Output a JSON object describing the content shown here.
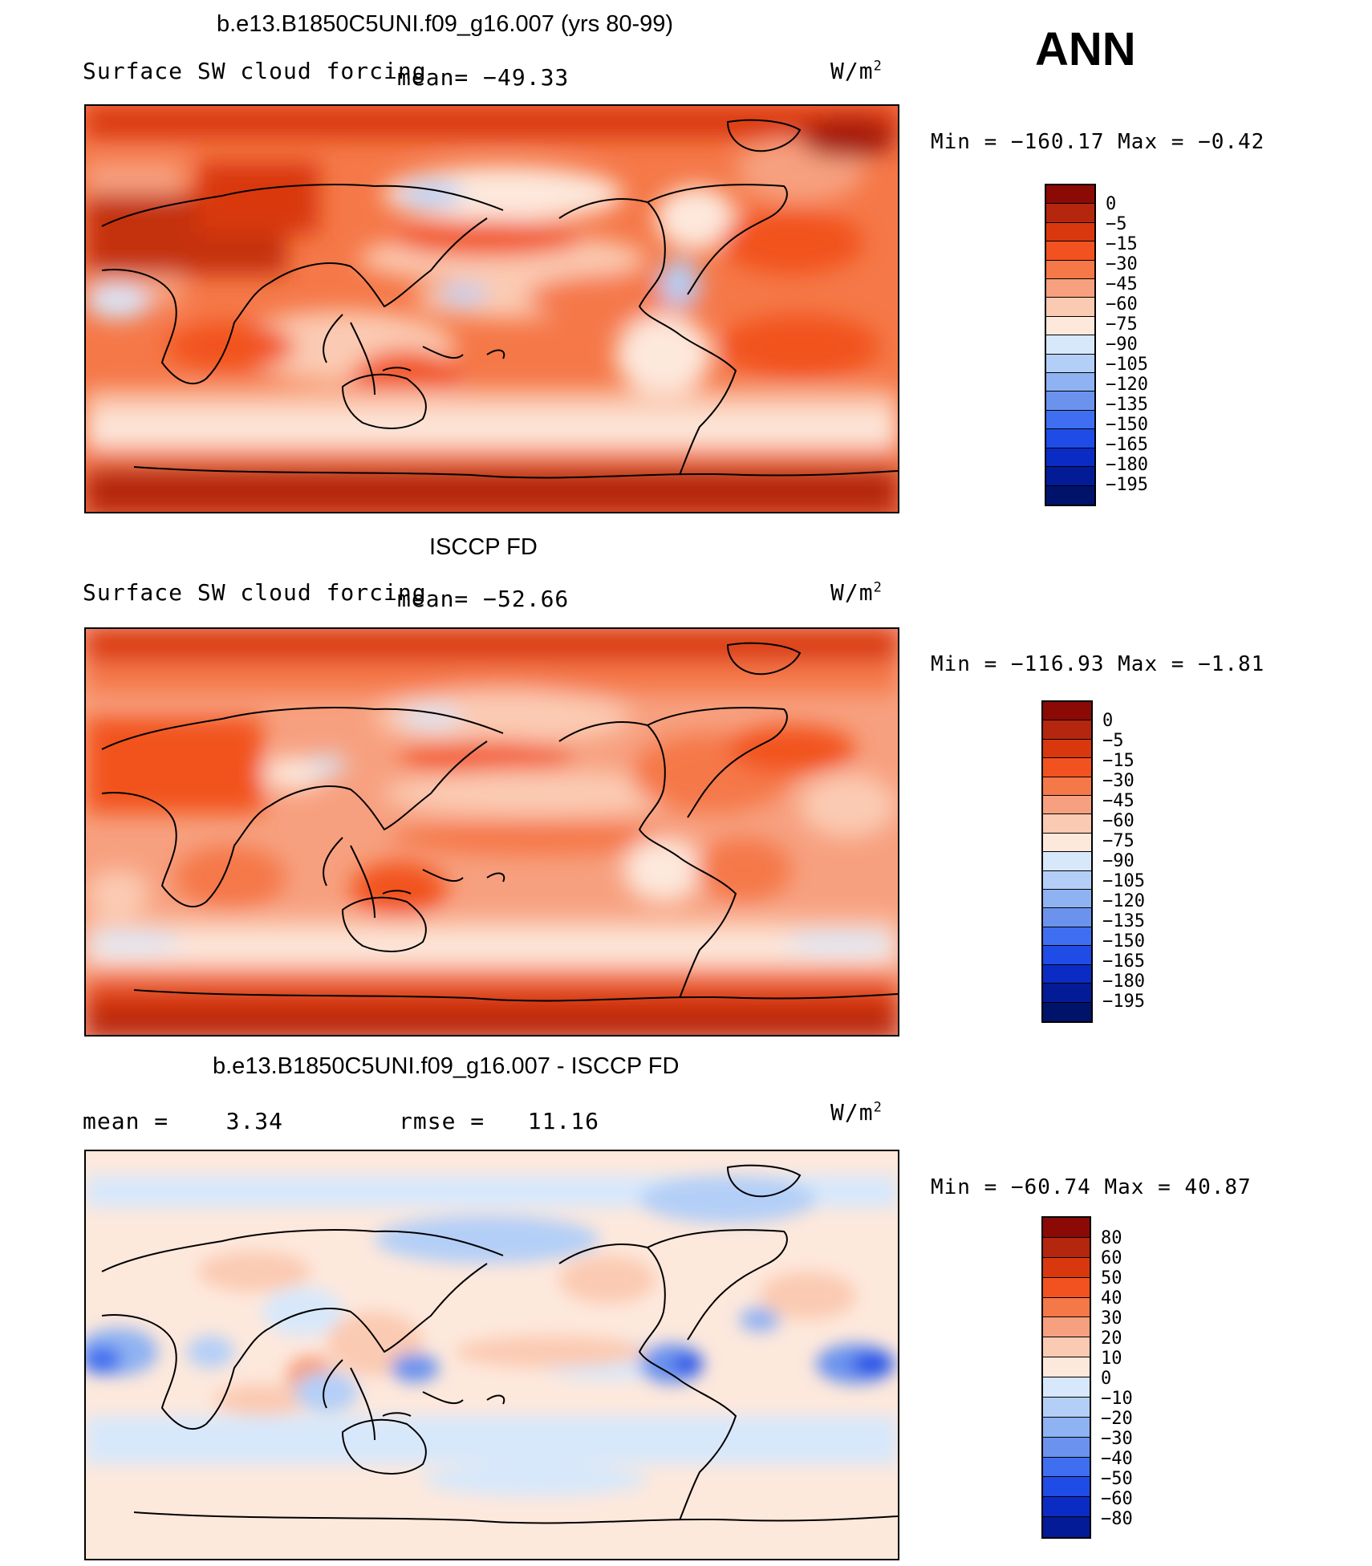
{
  "season": "ANN",
  "panels": [
    {
      "title": "b.e13.B1850C5UNI.f09_g16.007 (yrs 80-99)",
      "left_label": "Surface SW cloud forcing",
      "mid_label": "mean= −49.33",
      "unit_base": "W/m",
      "unit_exp": "2",
      "minmax": "Min = −160.17 Max =  −0.42",
      "colorbar": {
        "colors": [
          "#8b0a05",
          "#b5260e",
          "#d9380f",
          "#f2521f",
          "#f57848",
          "#f7a07f",
          "#fbcab2",
          "#fde8dc",
          "#d7e8fb",
          "#b4cff7",
          "#8fb2f2",
          "#6b93ee",
          "#3f6ff0",
          "#1f4be6",
          "#0b2cc4",
          "#031b96",
          "#00136b"
        ],
        "labels": [
          "0",
          "−5",
          "−15",
          "−30",
          "−45",
          "−60",
          "−75",
          "−90",
          "−105",
          "−120",
          "−135",
          "−150",
          "−165",
          "−180",
          "−195"
        ]
      }
    },
    {
      "title": "ISCCP FD",
      "left_label": "Surface SW cloud forcing",
      "mid_label": "mean= −52.66",
      "unit_base": "W/m",
      "unit_exp": "2",
      "minmax": "Min = −116.93 Max =  −1.81",
      "colorbar": {
        "colors": [
          "#8b0a05",
          "#b5260e",
          "#d9380f",
          "#f2521f",
          "#f57848",
          "#f7a07f",
          "#fbcab2",
          "#fde8dc",
          "#d7e8fb",
          "#b4cff7",
          "#8fb2f2",
          "#6b93ee",
          "#3f6ff0",
          "#1f4be6",
          "#0b2cc4",
          "#031b96",
          "#00136b"
        ],
        "labels": [
          "0",
          "−5",
          "−15",
          "−30",
          "−45",
          "−60",
          "−75",
          "−90",
          "−105",
          "−120",
          "−135",
          "−150",
          "−165",
          "−180",
          "−195"
        ]
      }
    },
    {
      "title": "b.e13.B1850C5UNI.f09_g16.007 - ISCCP FD",
      "left_label": "mean =    3.34",
      "mid_label": "rmse =   11.16",
      "unit_base": "W/m",
      "unit_exp": "2",
      "minmax": "Min = −60.74 Max =  40.87",
      "colorbar": {
        "colors": [
          "#8b0a05",
          "#b5260e",
          "#d9380f",
          "#f2521f",
          "#f57848",
          "#f7a07f",
          "#fbcab2",
          "#fde8dc",
          "#d7e8fb",
          "#b4cff7",
          "#8fb2f2",
          "#6b93ee",
          "#3f6ff0",
          "#1f4be6",
          "#0b2cc4",
          "#031b96"
        ],
        "labels": [
          "80",
          "60",
          "50",
          "40",
          "30",
          "20",
          "10",
          "0",
          "−10",
          "−20",
          "−30",
          "−40",
          "−50",
          "−60",
          "−80"
        ]
      }
    }
  ]
}
